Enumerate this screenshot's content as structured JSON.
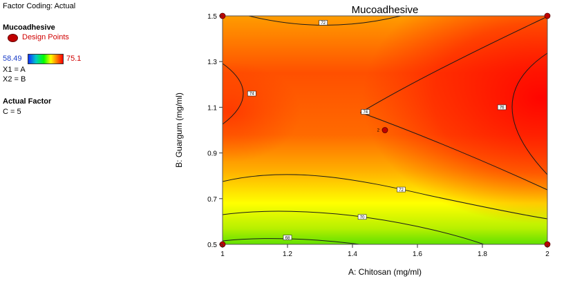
{
  "panel": {
    "coding": "Factor Coding: Actual",
    "response": "Mucoadhesive",
    "design_points": "Design Points",
    "range_low": "58.49",
    "range_high": "75.1",
    "x1": "X1 = A",
    "x2": "X2 = B",
    "actual_factor": "Actual Factor",
    "factor_c": "C = 5"
  },
  "colors": {
    "low": "#1030ff",
    "high": "#ff0000",
    "point": "#c00000",
    "accent_blue": "#1a3cc8",
    "accent_red": "#d00000"
  },
  "chart_data": {
    "type": "heatmap",
    "title": "Mucoadhesive",
    "xlabel": "A: Chitosan (mg/ml)",
    "ylabel": "B: Guargum (mg/ml)",
    "xlim": [
      1,
      2
    ],
    "ylim": [
      0.5,
      1.5
    ],
    "x_ticks": [
      "1",
      "1.2",
      "1.4",
      "1.6",
      "1.8",
      "2"
    ],
    "y_ticks": [
      "0.5",
      "0.7",
      "0.9",
      "1.1",
      "1.3",
      "1.5"
    ],
    "x_tick_values": [
      1,
      1.2,
      1.4,
      1.6,
      1.8,
      2
    ],
    "y_tick_values": [
      0.5,
      0.7,
      0.9,
      1.1,
      1.3,
      1.5
    ],
    "color_range": [
      58.49,
      75.1
    ],
    "contour_labels": [
      {
        "text": "72",
        "x": 1.31,
        "y": 1.47
      },
      {
        "text": "74",
        "x": 1.09,
        "y": 1.16
      },
      {
        "text": "74",
        "x": 1.44,
        "y": 1.08
      },
      {
        "text": "76",
        "x": 1.86,
        "y": 1.1
      },
      {
        "text": "72",
        "x": 1.55,
        "y": 0.74
      },
      {
        "text": "70",
        "x": 1.43,
        "y": 0.62
      },
      {
        "text": "68",
        "x": 1.2,
        "y": 0.53
      }
    ],
    "design_points": [
      {
        "x": 1,
        "y": 0.5
      },
      {
        "x": 2,
        "y": 0.5
      },
      {
        "x": 1,
        "y": 1.5
      },
      {
        "x": 2,
        "y": 1.5
      },
      {
        "x": 1.5,
        "y": 1.0,
        "label": "2"
      }
    ]
  }
}
